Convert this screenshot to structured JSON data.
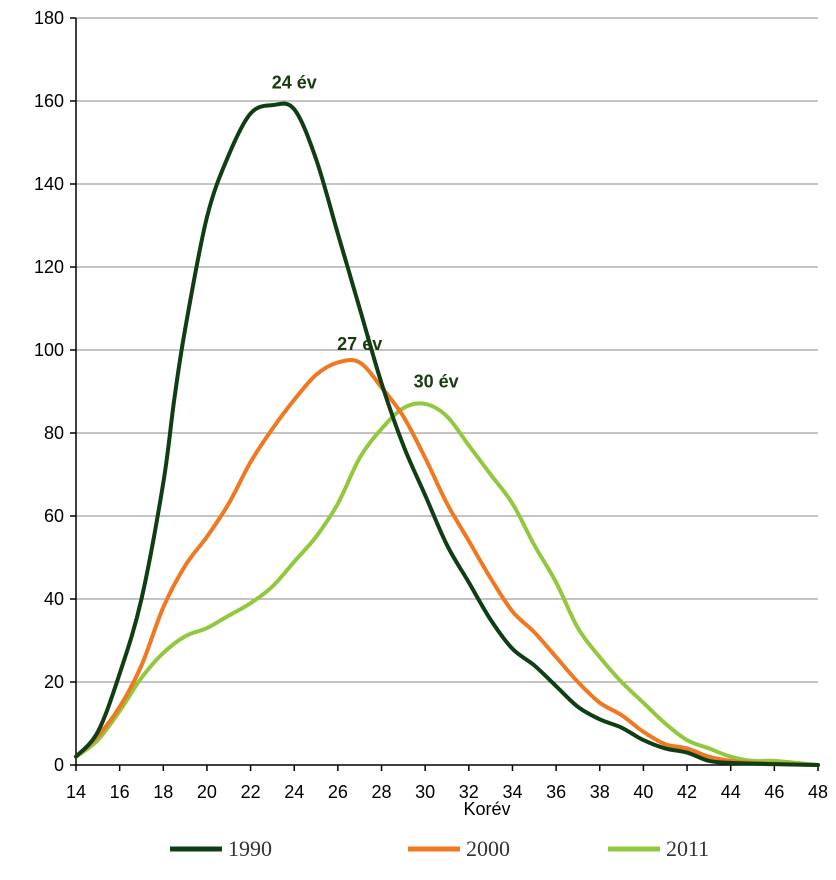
{
  "chart_data": {
    "type": "line",
    "title": "",
    "xlabel": "Korév",
    "ylabel": "",
    "xlim": [
      14,
      48
    ],
    "ylim": [
      0,
      180
    ],
    "xticks": [
      14,
      16,
      18,
      20,
      22,
      24,
      26,
      28,
      30,
      32,
      34,
      36,
      38,
      40,
      42,
      44,
      46,
      48
    ],
    "yticks": [
      0,
      20,
      40,
      60,
      80,
      100,
      120,
      140,
      160,
      180
    ],
    "grid": "horizontal",
    "legend": "bottom",
    "series": [
      {
        "name": "1990",
        "color": "#0f3d14",
        "points": [
          [
            14,
            2
          ],
          [
            15,
            8
          ],
          [
            16,
            22
          ],
          [
            17,
            40
          ],
          [
            18,
            68
          ],
          [
            18.5,
            88
          ],
          [
            19,
            105
          ],
          [
            20,
            132
          ],
          [
            21,
            147
          ],
          [
            22,
            157
          ],
          [
            23,
            159
          ],
          [
            24,
            158
          ],
          [
            25,
            146
          ],
          [
            26,
            128
          ],
          [
            27,
            110
          ],
          [
            28,
            92
          ],
          [
            29,
            77
          ],
          [
            30,
            65
          ],
          [
            31,
            53
          ],
          [
            32,
            44
          ],
          [
            33,
            35
          ],
          [
            34,
            28
          ],
          [
            35,
            24
          ],
          [
            36,
            19
          ],
          [
            37,
            14
          ],
          [
            38,
            11
          ],
          [
            39,
            9
          ],
          [
            40,
            6
          ],
          [
            41,
            4
          ],
          [
            42,
            3
          ],
          [
            43,
            1
          ],
          [
            44,
            0.5
          ],
          [
            46,
            0.2
          ],
          [
            48,
            0
          ]
        ]
      },
      {
        "name": "2000",
        "color": "#f07820",
        "points": [
          [
            14,
            2
          ],
          [
            15,
            7
          ],
          [
            16,
            14
          ],
          [
            17,
            24
          ],
          [
            18,
            38
          ],
          [
            19,
            48
          ],
          [
            20,
            55
          ],
          [
            21,
            63
          ],
          [
            22,
            73
          ],
          [
            23,
            81
          ],
          [
            24,
            88
          ],
          [
            25,
            94
          ],
          [
            26,
            97
          ],
          [
            27,
            97
          ],
          [
            28,
            91
          ],
          [
            29,
            84
          ],
          [
            30,
            74
          ],
          [
            31,
            63
          ],
          [
            32,
            54
          ],
          [
            33,
            45
          ],
          [
            34,
            37
          ],
          [
            35,
            32
          ],
          [
            36,
            26
          ],
          [
            37,
            20
          ],
          [
            38,
            15
          ],
          [
            39,
            12
          ],
          [
            40,
            8
          ],
          [
            41,
            5
          ],
          [
            42,
            4
          ],
          [
            43,
            2
          ],
          [
            44,
            1
          ],
          [
            45,
            0.5
          ],
          [
            48,
            0
          ]
        ]
      },
      {
        "name": "2011",
        "color": "#92c83e",
        "points": [
          [
            14,
            2
          ],
          [
            15,
            6
          ],
          [
            16,
            13
          ],
          [
            17,
            21
          ],
          [
            18,
            27
          ],
          [
            19,
            31
          ],
          [
            20,
            33
          ],
          [
            21,
            36
          ],
          [
            22,
            39
          ],
          [
            23,
            43
          ],
          [
            24,
            49
          ],
          [
            25,
            55
          ],
          [
            26,
            63
          ],
          [
            27,
            74
          ],
          [
            28,
            81
          ],
          [
            29,
            86
          ],
          [
            30,
            87
          ],
          [
            31,
            84
          ],
          [
            32,
            77
          ],
          [
            33,
            70
          ],
          [
            34,
            63
          ],
          [
            35,
            53
          ],
          [
            36,
            44
          ],
          [
            37,
            33
          ],
          [
            38,
            26
          ],
          [
            39,
            20
          ],
          [
            40,
            15
          ],
          [
            41,
            10
          ],
          [
            42,
            6
          ],
          [
            43,
            4
          ],
          [
            44,
            2
          ],
          [
            45,
            1
          ],
          [
            46,
            1
          ],
          [
            47,
            0.5
          ],
          [
            48,
            0
          ]
        ]
      }
    ],
    "annotations": [
      {
        "text": "24 év",
        "x": 24,
        "y": 163
      },
      {
        "text": "27 év",
        "x": 27,
        "y": 100
      },
      {
        "text": "30 év",
        "x": 30.5,
        "y": 91
      }
    ]
  }
}
